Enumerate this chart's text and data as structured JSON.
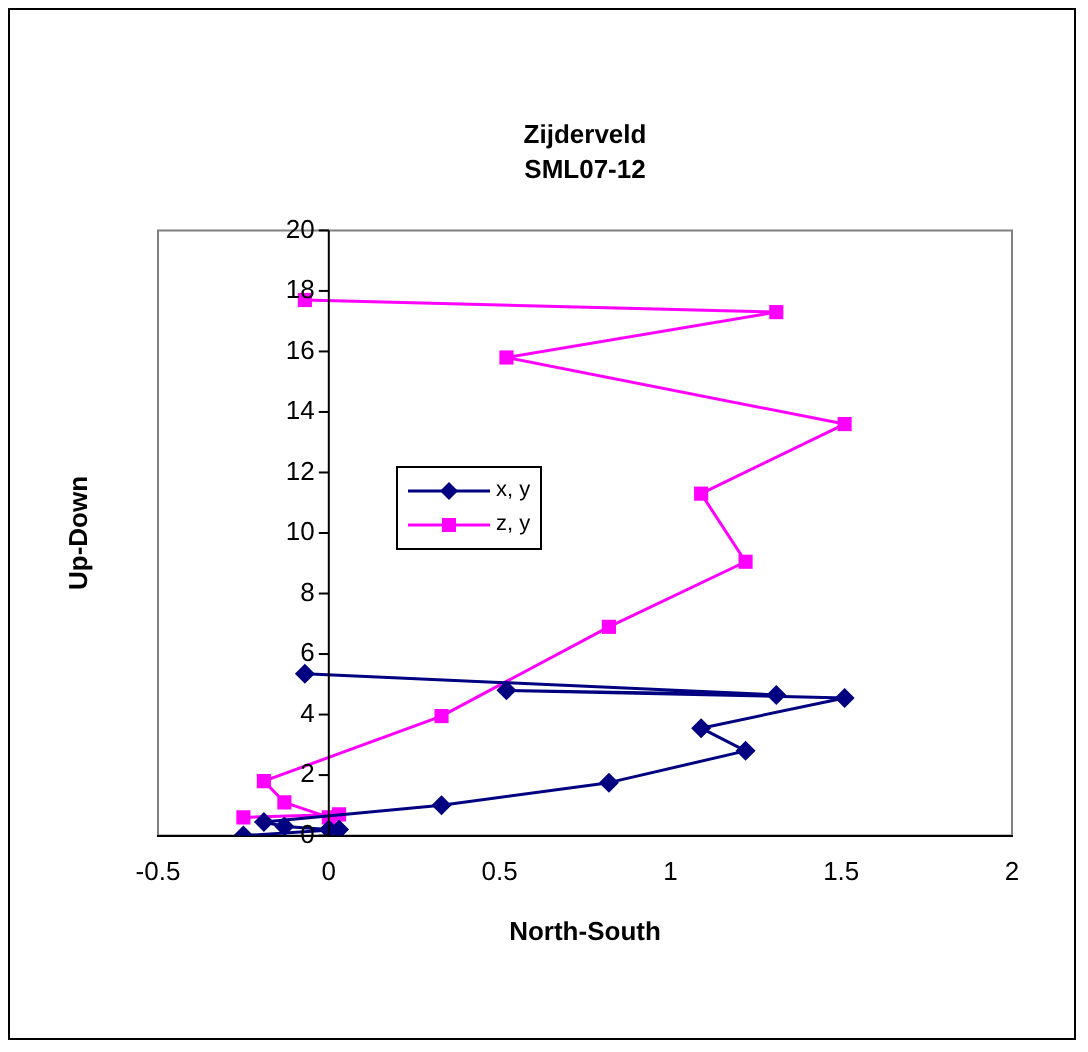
{
  "chart_data": {
    "type": "line",
    "title": "Zijderveld",
    "subtitle": "SML07-12",
    "xlabel": "North-South",
    "ylabel": "Up-Down",
    "xlim": [
      -0.5,
      2
    ],
    "xticks": [
      -0.5,
      0,
      0.5,
      1,
      1.5,
      2
    ],
    "ylim": [
      0,
      20
    ],
    "yticks": [
      0,
      2,
      4,
      6,
      8,
      10,
      12,
      14,
      16,
      18,
      20
    ],
    "grid": false,
    "legend": "left",
    "line_style": "solid",
    "series": [
      {
        "name": "x, y",
        "color": "#000080",
        "marker": "diamond",
        "x": [
          -0.25,
          0.03,
          0.0,
          -0.13,
          -0.19,
          0.33,
          0.82,
          1.22,
          1.09,
          1.51,
          0.52,
          1.31,
          -0.07
        ],
        "values": [
          0,
          0.2,
          0.2,
          0.3,
          0.45,
          1,
          1.75,
          2.8,
          3.55,
          4.55,
          4.8,
          4.65,
          5.35
        ]
      },
      {
        "name": "z, y",
        "color": "#ff00ff",
        "marker": "square",
        "x": [
          -0.25,
          0.03,
          0.0,
          -0.13,
          -0.19,
          0.33,
          0.82,
          1.22,
          1.09,
          1.51,
          0.52,
          1.31,
          -0.07
        ],
        "values": [
          0.6,
          0.7,
          0.6,
          1.1,
          1.8,
          3.95,
          6.9,
          9.05,
          11.3,
          13.6,
          15.8,
          17.3,
          17.7
        ]
      }
    ]
  }
}
